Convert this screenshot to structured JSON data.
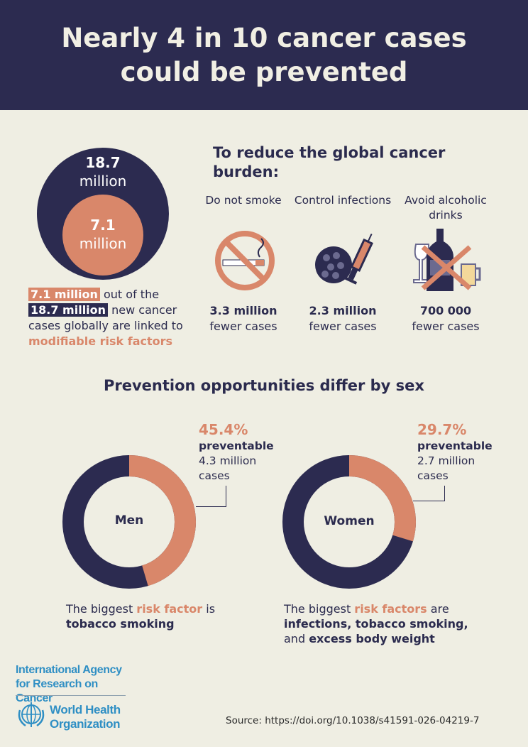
{
  "title": "Nearly 4 in 10 cancer cases could be prevented",
  "overview": {
    "total": "18.7",
    "total_unit": "million",
    "preventable": "7.1",
    "preventable_unit": "million",
    "text": {
      "hl1": "7.1 million",
      "t1": " out of the",
      "hl2": "18.7 million",
      "t2": " new cancer cases globally are linked to ",
      "emph": "modifiable risk factors"
    }
  },
  "reduce": {
    "heading": "To reduce the global cancer burden:",
    "items": [
      {
        "label": "Do not smoke",
        "value": "3.3 million",
        "sub": "fewer cases",
        "icon": "no-smoking-icon"
      },
      {
        "label": "Control infections",
        "value": "2.3 million",
        "sub": "fewer cases",
        "icon": "virus-syringe-icon"
      },
      {
        "label": "Avoid alcoholic drinks",
        "value": "700 000",
        "sub": "fewer cases",
        "icon": "no-alcohol-icon"
      }
    ]
  },
  "sex": {
    "heading": "Prevention opportunities differ by sex",
    "men": {
      "label": "Men",
      "pct": "45.4%",
      "pct_value": 45.4,
      "preventable": "preventable",
      "cases": "4.3 million cases",
      "cap1": "The biggest ",
      "cap_emph": "risk factor",
      "cap2": " is ",
      "cap_bold": "tobacco smoking"
    },
    "women": {
      "label": "Women",
      "pct": "29.7%",
      "pct_value": 29.7,
      "preventable": "preventable",
      "cases": "2.7 million cases",
      "cap1": "The biggest ",
      "cap_emph": "risk factors",
      "cap2": " are ",
      "cap_bold": "infections, tobacco smoking,",
      "cap3": " and ",
      "cap_bold2": "excess body weight"
    }
  },
  "footer": {
    "iarc": "International Agency for Research on Cancer",
    "who": "World Health Organization",
    "source": "Source: https://doi.org/10.1038/s41591-026-04219-7"
  },
  "colors": {
    "navy": "#2c2b50",
    "salmon": "#d9876a",
    "bg": "#efeee3"
  }
}
